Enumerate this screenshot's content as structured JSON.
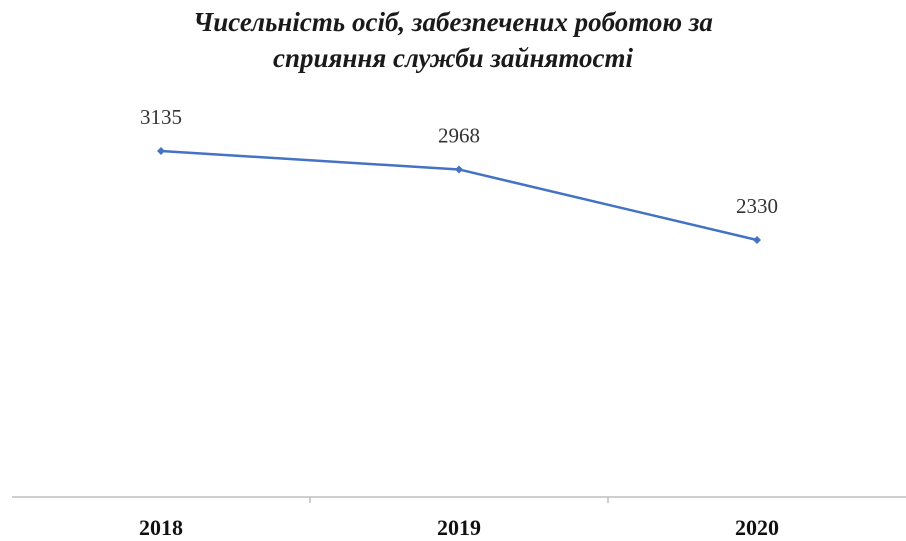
{
  "chart_data": {
    "type": "line",
    "title": [
      "Чисельність осіб, забезпечених роботою за",
      "сприяння служби зайнятості"
    ],
    "categories": [
      "2018",
      "2019",
      "2020"
    ],
    "series": [
      {
        "values": [
          3135,
          2968,
          2330
        ]
      }
    ],
    "data_labels": [
      "3135",
      "2968",
      "2330"
    ],
    "xlabel": "",
    "ylabel": "",
    "y_axis_visible": false,
    "grid": false,
    "legend": "none",
    "colors": {
      "line": "#4472C4",
      "axis": "#bfbfbf",
      "text": "#333333"
    }
  }
}
